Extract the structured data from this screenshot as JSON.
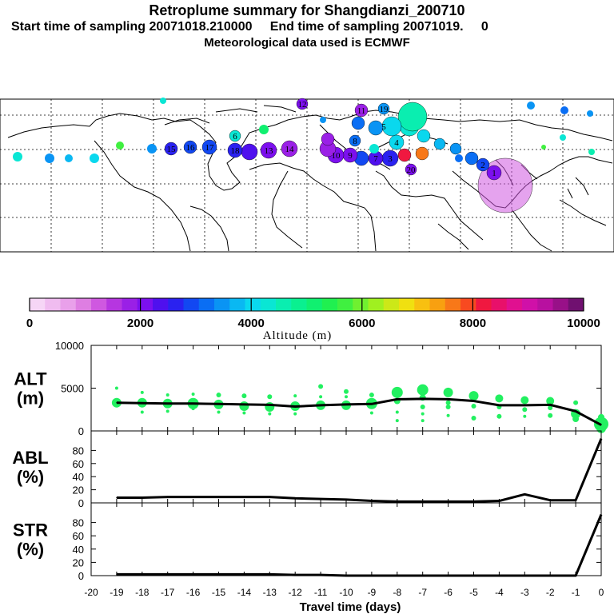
{
  "header": {
    "title": "Retroplume summary for Shangdianzi_200710",
    "sampling": "Start time of sampling 20071018.210000     End time of sampling 20071019.     0",
    "met": "Meteorological data used is ECMWF"
  },
  "colorbar": {
    "tick_labels": [
      "0",
      "2000",
      "4000",
      "6000",
      "8000",
      "10000"
    ],
    "label": "Altitude (m)",
    "colors": [
      "#f6d6f6",
      "#f0bcf0",
      "#e9a0ea",
      "#de7ee2",
      "#cf58e0",
      "#b636e0",
      "#9a20e6",
      "#7c10ee",
      "#4f10ee",
      "#2a22f0",
      "#1248f2",
      "#0a6ef4",
      "#0a94f4",
      "#0ab8f2",
      "#0ad8ee",
      "#0ae6d4",
      "#0aeeb0",
      "#0af090",
      "#10f070",
      "#20f050",
      "#40f040",
      "#70f030",
      "#a0f020",
      "#cce818",
      "#f0e010",
      "#f8c010",
      "#f8a010",
      "#f87818",
      "#f84a20",
      "#f01840",
      "#e8106a",
      "#e01090",
      "#d010a8",
      "#b810a0",
      "#981088",
      "#701070"
    ]
  },
  "map": {
    "numbered_markers": [
      "12",
      "11",
      "19",
      "5",
      "4",
      "8",
      "6",
      "18",
      "17",
      "16",
      "15",
      "14",
      "13",
      "10",
      "9",
      "7",
      "3",
      "2",
      "1",
      "20"
    ]
  },
  "chart_data": [
    {
      "type": "line",
      "panel": "ALT",
      "ylabel": "ALT\n(m)",
      "ylabel_lines": [
        "ALT",
        "(m)"
      ],
      "ylim": [
        0,
        10000
      ],
      "yticks": [
        "0",
        "5000",
        "10000"
      ],
      "x": [
        -19,
        -18,
        -17,
        -16,
        -15,
        -14,
        -13,
        -12,
        -11,
        -10,
        -9,
        -8,
        -7,
        -6,
        -5,
        -4,
        -3,
        -2,
        -1,
        0
      ],
      "values": [
        3300,
        3250,
        3200,
        3200,
        3150,
        3100,
        3050,
        2850,
        3000,
        3100,
        3150,
        3700,
        3750,
        3700,
        3500,
        3000,
        3000,
        3050,
        2300,
        700
      ],
      "clusters": [
        {
          "x": -19,
          "alts": [
            3300,
            5000
          ],
          "sizes": [
            6,
            2
          ]
        },
        {
          "x": -18,
          "alts": [
            3300,
            4500,
            2200
          ],
          "sizes": [
            6,
            2,
            2
          ]
        },
        {
          "x": -17,
          "alts": [
            3200,
            4200,
            2300
          ],
          "sizes": [
            6,
            2,
            2
          ]
        },
        {
          "x": -16,
          "alts": [
            3200,
            4300,
            2600
          ],
          "sizes": [
            7,
            2,
            2
          ]
        },
        {
          "x": -15,
          "alts": [
            3100,
            4200,
            2200
          ],
          "sizes": [
            6,
            3,
            2
          ]
        },
        {
          "x": -14,
          "alts": [
            2900,
            4100,
            2100
          ],
          "sizes": [
            6,
            3,
            2
          ]
        },
        {
          "x": -13,
          "alts": [
            2800,
            4000,
            2000
          ],
          "sizes": [
            6,
            3,
            2
          ]
        },
        {
          "x": -12,
          "alts": [
            2900,
            4100,
            2000
          ],
          "sizes": [
            6,
            2,
            2
          ]
        },
        {
          "x": -11,
          "alts": [
            3000,
            5200,
            4000
          ],
          "sizes": [
            6,
            3,
            2
          ]
        },
        {
          "x": -10,
          "alts": [
            3000,
            4600,
            4000
          ],
          "sizes": [
            6,
            3,
            2
          ]
        },
        {
          "x": -9,
          "alts": [
            3200,
            4200,
            2100
          ],
          "sizes": [
            7,
            3,
            2
          ]
        },
        {
          "x": -8,
          "alts": [
            4500,
            3500,
            2200,
            1200
          ],
          "sizes": [
            7,
            4,
            2,
            2
          ]
        },
        {
          "x": -7,
          "alts": [
            4800,
            3900,
            2800,
            2000,
            1200
          ],
          "sizes": [
            7,
            4,
            3,
            2,
            2
          ]
        },
        {
          "x": -6,
          "alts": [
            4500,
            3300,
            2800,
            1800
          ],
          "sizes": [
            6,
            3,
            3,
            2
          ]
        },
        {
          "x": -5,
          "alts": [
            4100,
            2900,
            1500
          ],
          "sizes": [
            6,
            3,
            3
          ]
        },
        {
          "x": -4,
          "alts": [
            3800,
            2800,
            1700
          ],
          "sizes": [
            5,
            3,
            3
          ]
        },
        {
          "x": -3,
          "alts": [
            3600,
            2500,
            1700
          ],
          "sizes": [
            5,
            3,
            2
          ]
        },
        {
          "x": -2,
          "alts": [
            3500,
            2700,
            1800
          ],
          "sizes": [
            5,
            3,
            3
          ]
        },
        {
          "x": -1,
          "alts": [
            2000,
            1400,
            3300
          ],
          "sizes": [
            6,
            4,
            3
          ]
        },
        {
          "x": 0,
          "alts": [
            800,
            300,
            1600
          ],
          "sizes": [
            9,
            6,
            4
          ]
        }
      ]
    },
    {
      "type": "line",
      "panel": "ABL",
      "ylabel_lines": [
        "ABL",
        "(%)"
      ],
      "ylim": [
        0,
        100
      ],
      "yticks": [
        "0",
        "20",
        "40",
        "60",
        "80"
      ],
      "x": [
        -19,
        -18,
        -17,
        -16,
        -15,
        -14,
        -13,
        -12,
        -11,
        -10,
        -9,
        -8,
        -7,
        -6,
        -5,
        -4,
        -3,
        -2,
        -1,
        0
      ],
      "values": [
        8,
        8,
        9,
        9,
        9,
        9,
        9,
        7,
        6,
        5,
        3,
        2,
        2,
        2,
        2,
        3,
        13,
        4,
        4,
        98
      ]
    },
    {
      "type": "line",
      "panel": "STR",
      "ylabel_lines": [
        "STR",
        "(%)"
      ],
      "ylim": [
        0,
        100
      ],
      "yticks": [
        "0",
        "20",
        "40",
        "60",
        "80"
      ],
      "x": [
        -19,
        -18,
        -17,
        -16,
        -15,
        -14,
        -13,
        -12,
        -11,
        -10,
        -9,
        -8,
        -7,
        -6,
        -5,
        -4,
        -3,
        -2,
        -1,
        0
      ],
      "values": [
        2,
        2,
        2,
        2,
        2,
        2,
        2,
        1,
        1,
        0,
        0,
        0,
        0,
        0,
        0,
        0,
        0,
        0,
        0,
        92
      ]
    }
  ],
  "xaxis": {
    "ticks": [
      "-20",
      "-19",
      "-18",
      "-17",
      "-16",
      "-15",
      "-14",
      "-13",
      "-12",
      "-11",
      "-10",
      "-9",
      "-8",
      "-7",
      "-6",
      "-5",
      "-4",
      "-3",
      "-2",
      "-1",
      "0"
    ],
    "label": "Travel time (days)"
  }
}
